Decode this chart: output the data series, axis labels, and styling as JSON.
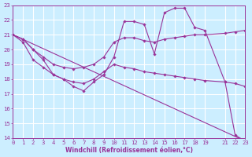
{
  "bg_color": "#cceeff",
  "grid_color": "#ffffff",
  "line_color": "#993399",
  "xlabel": "Windchill (Refroidissement éolien,°C)",
  "xlim": [
    0,
    23
  ],
  "ylim": [
    14,
    23
  ],
  "yticks": [
    14,
    15,
    16,
    17,
    18,
    19,
    20,
    21,
    22,
    23
  ],
  "xticks": [
    0,
    1,
    2,
    3,
    4,
    5,
    6,
    7,
    8,
    9,
    10,
    11,
    12,
    13,
    14,
    15,
    16,
    17,
    18,
    19,
    21,
    22,
    23
  ],
  "series": [
    {
      "x": [
        0,
        1,
        2,
        3,
        4,
        5,
        6,
        7,
        8,
        9,
        10,
        11,
        12,
        13,
        14,
        15,
        16,
        17,
        18,
        19,
        21,
        22,
        23
      ],
      "y": [
        21.0,
        20.7,
        20.0,
        19.3,
        18.3,
        18.0,
        17.5,
        17.2,
        17.8,
        18.3,
        19.5,
        21.9,
        21.9,
        21.7,
        19.7,
        22.5,
        22.8,
        22.8,
        21.5,
        21.3,
        17.8,
        14.2,
        13.8
      ],
      "markers": true
    },
    {
      "x": [
        0,
        1,
        2,
        3,
        4,
        5,
        6,
        7,
        8,
        9,
        10,
        11,
        12,
        13,
        14,
        15,
        16,
        17,
        18,
        19,
        21,
        22,
        23
      ],
      "y": [
        21.0,
        20.7,
        20.0,
        19.5,
        19.0,
        18.8,
        18.7,
        18.8,
        19.0,
        19.5,
        20.5,
        20.8,
        20.8,
        20.6,
        20.5,
        20.7,
        20.8,
        20.9,
        21.0,
        21.0,
        21.1,
        21.2,
        21.3
      ],
      "markers": true
    },
    {
      "x": [
        0,
        1,
        2,
        3,
        4,
        5,
        6,
        7,
        8,
        9,
        10,
        11,
        12,
        13,
        14,
        15,
        16,
        17,
        18,
        19,
        21,
        22,
        23
      ],
      "y": [
        21.0,
        20.5,
        19.3,
        18.8,
        18.3,
        18.0,
        17.8,
        17.7,
        18.0,
        18.5,
        19.0,
        18.8,
        18.7,
        18.5,
        18.4,
        18.3,
        18.2,
        18.1,
        18.0,
        17.9,
        17.8,
        17.7,
        17.5
      ],
      "markers": true
    },
    {
      "x": [
        0,
        23
      ],
      "y": [
        21.0,
        13.8
      ],
      "markers": false
    }
  ]
}
